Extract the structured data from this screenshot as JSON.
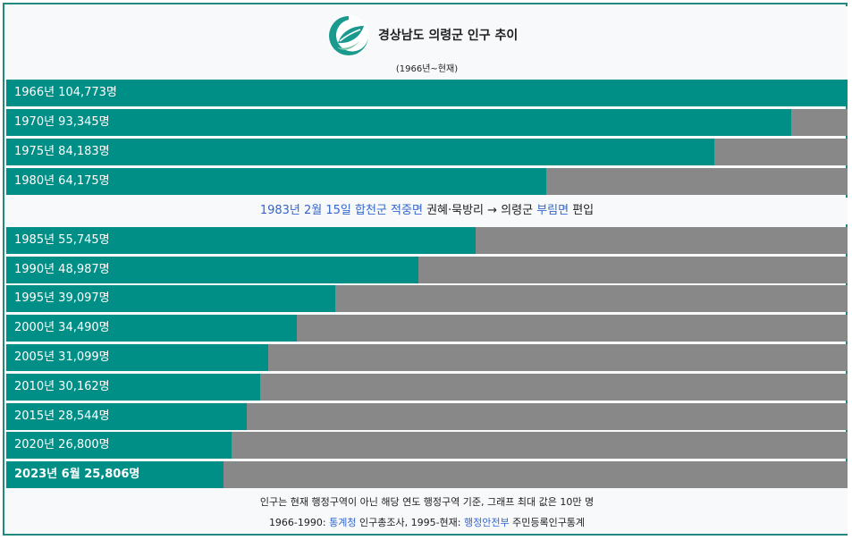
{
  "header": {
    "title": "경상남도 의령군 인구 추이",
    "subtitle": "(1966년~현재)"
  },
  "colors": {
    "bar": "#008f87",
    "track": "#888888",
    "border": "#21897e",
    "link": "#3366cc"
  },
  "chart_data": {
    "type": "bar",
    "title": "경상남도 의령군 인구 추이",
    "subtitle": "(1966년~현재)",
    "ylim": [
      0,
      100000
    ],
    "categories": [
      "1966년",
      "1970년",
      "1975년",
      "1980년",
      "1985년",
      "1990년",
      "1995년",
      "2000년",
      "2005년",
      "2010년",
      "2015년",
      "2020년",
      "2023년 6월"
    ],
    "values": [
      104773,
      93345,
      84183,
      64175,
      55745,
      48987,
      39097,
      34490,
      31099,
      30162,
      28544,
      26800,
      25806
    ],
    "labels": [
      "1966년 104,773명",
      "1970년 93,345명",
      "1975년 84,183명",
      "1980년 64,175명",
      "1985년 55,745명",
      "1990년 48,987명",
      "1995년 39,097명",
      "2000년 34,490명",
      "2005년 31,099명",
      "2010년 30,162명",
      "2015년 28,544명",
      "2020년 26,800명",
      "2023년 6월 25,806명"
    ]
  },
  "note": {
    "date_link": "1983년 2월 15일",
    "space1": " ",
    "from_county_link": "합천군",
    "space2": " ",
    "from_town_link": "적중면",
    "areas": " 권혜·묵방리 → ",
    "to_county": "의령군",
    "space3": " ",
    "to_town_link": "부림면",
    "suffix": " 편입"
  },
  "footer": {
    "line1": "인구는 현재 행정구역이 아닌 해당 연도 행정구역 기준, 그래프 최대 값은 10만 명",
    "line2_prefix": "1966-1990: ",
    "source1_link": "통계청",
    "line2_mid": " 인구총조사, 1995-현재: ",
    "source2_link": "행정안전부",
    "line2_suffix": " 주민등록인구통계"
  }
}
